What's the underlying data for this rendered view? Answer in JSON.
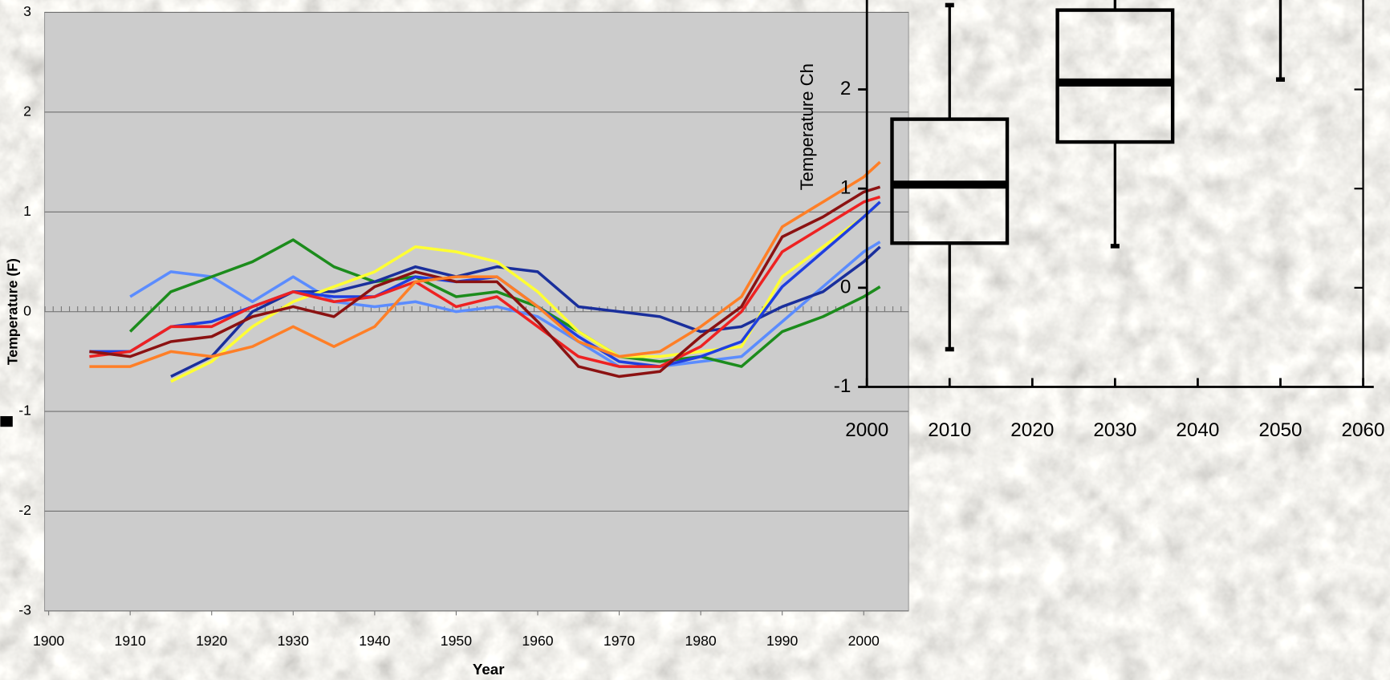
{
  "chart_data": [
    {
      "type": "line",
      "xlabel": "Year",
      "ylabel": "Temperature (F)",
      "x": [
        1905,
        1910,
        1915,
        1920,
        1925,
        1930,
        1935,
        1940,
        1945,
        1950,
        1955,
        1960,
        1965,
        1970,
        1975,
        1980,
        1985,
        1990,
        1995,
        2000,
        2002
      ],
      "xlim": [
        1899.5,
        2005.5
      ],
      "xticks": [
        1900,
        1910,
        1920,
        1930,
        1940,
        1950,
        1960,
        1970,
        1980,
        1990,
        2000
      ],
      "ylim": [
        -3,
        3
      ],
      "yticks": [
        -3,
        -2,
        -1,
        0,
        1,
        2,
        3
      ],
      "grid": true,
      "series": [
        {
          "color": "#5b8cff",
          "values": [
            null,
            0.15,
            0.4,
            0.35,
            0.1,
            0.35,
            0.1,
            0.05,
            0.1,
            0.0,
            0.05,
            -0.05,
            -0.3,
            -0.55,
            -0.55,
            -0.5,
            -0.45,
            -0.1,
            0.25,
            0.6,
            0.7
          ]
        },
        {
          "color": "#1c8c1c",
          "values": [
            null,
            -0.2,
            0.2,
            0.35,
            0.5,
            0.72,
            0.45,
            0.3,
            0.35,
            0.15,
            0.2,
            0.05,
            -0.2,
            -0.45,
            -0.5,
            -0.45,
            -0.55,
            -0.2,
            -0.05,
            0.15,
            0.25
          ]
        },
        {
          "color": "#1a2f9c",
          "values": [
            null,
            null,
            -0.65,
            -0.45,
            0.0,
            0.2,
            0.2,
            0.3,
            0.45,
            0.35,
            0.45,
            0.4,
            0.05,
            0.0,
            -0.05,
            -0.2,
            -0.15,
            0.05,
            0.2,
            0.5,
            0.65
          ]
        },
        {
          "color": "#ffff33",
          "values": [
            null,
            null,
            -0.7,
            -0.5,
            -0.15,
            0.1,
            0.25,
            0.4,
            0.65,
            0.6,
            0.5,
            0.2,
            -0.2,
            -0.45,
            -0.45,
            -0.4,
            -0.35,
            0.35,
            0.65,
            0.95,
            1.1
          ]
        },
        {
          "color": "#1f3fe0",
          "values": [
            -0.4,
            -0.4,
            -0.15,
            -0.1,
            0.05,
            0.2,
            0.15,
            0.15,
            0.35,
            0.3,
            0.35,
            0.05,
            -0.25,
            -0.5,
            -0.55,
            -0.45,
            -0.3,
            0.25,
            0.6,
            0.95,
            1.1
          ]
        },
        {
          "color": "#ee2222",
          "values": [
            -0.45,
            -0.4,
            -0.15,
            -0.15,
            0.05,
            0.2,
            0.1,
            0.15,
            0.3,
            0.05,
            0.15,
            -0.15,
            -0.45,
            -0.55,
            -0.55,
            -0.35,
            0.0,
            0.6,
            0.85,
            1.1,
            1.15
          ]
        },
        {
          "color": "#8b1212",
          "values": [
            -0.4,
            -0.45,
            -0.3,
            -0.25,
            -0.05,
            0.05,
            -0.05,
            0.25,
            0.4,
            0.3,
            0.3,
            -0.1,
            -0.55,
            -0.65,
            -0.6,
            -0.25,
            0.05,
            0.75,
            0.95,
            1.2,
            1.25
          ]
        },
        {
          "color": "#ff7f27",
          "values": [
            -0.55,
            -0.55,
            -0.4,
            -0.45,
            -0.35,
            -0.15,
            -0.35,
            -0.15,
            0.3,
            0.35,
            0.35,
            0.05,
            -0.3,
            -0.45,
            -0.4,
            -0.15,
            0.15,
            0.85,
            1.1,
            1.35,
            1.5
          ]
        }
      ]
    },
    {
      "type": "box",
      "ylabel": "Temperature Ch",
      "x": [
        2010,
        2030,
        2050
      ],
      "min": [
        -0.62,
        0.42,
        2.1
      ],
      "q1": [
        0.45,
        1.47,
        null
      ],
      "median": [
        1.04,
        2.07,
        null
      ],
      "q3": [
        1.7,
        2.8,
        null
      ],
      "max": [
        2.85,
        null,
        null
      ],
      "color": "#000000",
      "xlim": [
        2000,
        2060
      ],
      "xticks": [
        2000,
        2010,
        2020,
        2030,
        2040,
        2050,
        2060
      ],
      "ylim": [
        -1,
        3
      ],
      "yticks": [
        -1,
        0,
        1,
        2,
        3
      ]
    }
  ]
}
